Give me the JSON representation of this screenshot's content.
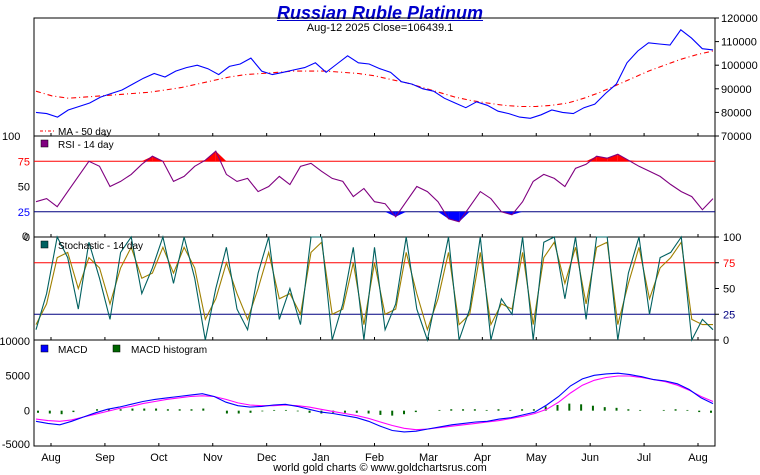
{
  "title": "Russian Ruble Platinum",
  "subtitle": "Aug-12  2025   Close=106439.1",
  "footer": "world gold charts © www.goldchartsrus.com",
  "colors": {
    "price": "#0000ff",
    "ma": "#ff0000",
    "rsi": "#800080",
    "rsi_over": "#ff0000",
    "rsi_under": "#0000ff",
    "stoch_k": "#006060",
    "stoch_d": "#a08000",
    "ref_high": "#ff0000",
    "ref_low": "#000080",
    "macd": "#0000ff",
    "signal": "#ff00ff",
    "histogram": "#006600"
  },
  "chart_data": [
    {
      "type": "line",
      "panel": "price",
      "x_tick_labels": [
        "Aug",
        "Sep",
        "Oct",
        "Nov",
        "Dec",
        "Jan",
        "Feb",
        "Mar",
        "Apr",
        "May",
        "Jun",
        "Jul",
        "Aug"
      ],
      "ylim": [
        70000,
        120000
      ],
      "y_ticks": [
        70000,
        80000,
        90000,
        100000,
        110000,
        120000
      ],
      "legend": [
        {
          "name": "MA - 50 day",
          "color": "#ff0000",
          "style": "dashdot"
        }
      ],
      "series": [
        {
          "name": "price",
          "color": "#0000ff",
          "values": [
            80000,
            79500,
            78000,
            81000,
            82500,
            84000,
            86500,
            88000,
            89500,
            92000,
            94500,
            96500,
            95000,
            97500,
            99000,
            100000,
            98500,
            96000,
            99500,
            100500,
            103000,
            97500,
            96000,
            97000,
            98000,
            99000,
            101000,
            97000,
            100500,
            104000,
            101000,
            100500,
            98500,
            97000,
            93000,
            92000,
            90000,
            89000,
            86000,
            84000,
            82000,
            84500,
            83000,
            80500,
            79500,
            78000,
            77500,
            79000,
            81000,
            80000,
            79500,
            82000,
            83500,
            88000,
            92000,
            101000,
            106000,
            109500,
            109000,
            108500,
            115000,
            111500,
            107000,
            106500
          ]
        },
        {
          "name": "MA - 50 day",
          "color": "#ff0000",
          "values": [
            89000,
            87000,
            86000,
            86500,
            87000,
            87500,
            88000,
            88500,
            89500,
            90500,
            92000,
            93500,
            95000,
            96000,
            96500,
            97000,
            97500,
            97500,
            97500,
            97000,
            96500,
            95500,
            94000,
            92500,
            90500,
            88500,
            86500,
            85000,
            84000,
            83000,
            82500,
            82500,
            83000,
            84000,
            86000,
            88500,
            91500,
            94500,
            97500,
            100000,
            102500,
            104500,
            106000
          ]
        }
      ]
    },
    {
      "type": "line",
      "panel": "rsi",
      "ylim": [
        0,
        100
      ],
      "y_ticks": [
        0,
        25,
        50,
        75,
        100
      ],
      "reference_lines": [
        75,
        25
      ],
      "legend": [
        {
          "name": "RSI - 14 day",
          "color": "#800080"
        }
      ],
      "series": [
        {
          "name": "RSI - 14 day",
          "color": "#800080",
          "values": [
            35,
            38,
            30,
            45,
            60,
            75,
            70,
            50,
            55,
            62,
            72,
            80,
            75,
            55,
            60,
            70,
            76,
            85,
            62,
            55,
            58,
            45,
            50,
            60,
            52,
            70,
            73,
            65,
            58,
            55,
            40,
            48,
            35,
            33,
            20,
            35,
            50,
            45,
            35,
            18,
            15,
            30,
            45,
            38,
            25,
            22,
            35,
            55,
            62,
            58,
            50,
            68,
            72,
            80,
            78,
            82,
            76,
            70,
            65,
            60,
            52,
            45,
            40,
            27,
            38
          ]
        }
      ]
    },
    {
      "type": "line",
      "panel": "stochastic",
      "ylim": [
        0,
        100
      ],
      "y_ticks": [
        0,
        25,
        50,
        75,
        100
      ],
      "reference_lines": [
        75,
        25
      ],
      "legend": [
        {
          "name": "Stochastic - 14 day",
          "color": "#006060"
        }
      ],
      "series": [
        {
          "name": "%K",
          "color": "#006060",
          "values": [
            10,
            45,
            100,
            80,
            30,
            95,
            60,
            20,
            85,
            100,
            45,
            70,
            100,
            55,
            100,
            60,
            0,
            50,
            90,
            30,
            10,
            65,
            100,
            20,
            50,
            15,
            100,
            100,
            0,
            35,
            90,
            0,
            90,
            10,
            35,
            100,
            30,
            0,
            50,
            100,
            0,
            30,
            100,
            0,
            40,
            25,
            100,
            0,
            95,
            100,
            40,
            100,
            20,
            100,
            100,
            0,
            65,
            100,
            25,
            80,
            85,
            100,
            0,
            20,
            10
          ]
        },
        {
          "name": "%D",
          "color": "#a08000",
          "values": [
            15,
            35,
            80,
            85,
            50,
            80,
            70,
            35,
            70,
            90,
            60,
            65,
            90,
            65,
            90,
            70,
            20,
            40,
            75,
            45,
            20,
            50,
            85,
            40,
            45,
            25,
            85,
            95,
            25,
            30,
            75,
            15,
            75,
            25,
            30,
            85,
            45,
            10,
            40,
            85,
            15,
            25,
            85,
            15,
            35,
            30,
            85,
            15,
            80,
            95,
            55,
            90,
            35,
            90,
            95,
            15,
            55,
            90,
            40,
            70,
            80,
            95,
            20,
            15,
            15
          ]
        }
      ]
    },
    {
      "type": "line",
      "panel": "macd",
      "ylim": [
        -5000,
        10000
      ],
      "y_ticks": [
        -5000,
        0,
        5000,
        10000
      ],
      "legend": [
        {
          "name": "MACD",
          "color": "#0000ff"
        },
        {
          "name": "MACD histogram",
          "color": "#006600"
        }
      ],
      "series": [
        {
          "name": "MACD",
          "color": "#0000ff",
          "values": [
            -1500,
            -1800,
            -2000,
            -1500,
            -900,
            -300,
            200,
            500,
            900,
            1300,
            1600,
            1800,
            2000,
            2200,
            2400,
            2000,
            1200,
            700,
            500,
            600,
            800,
            900,
            600,
            200,
            -200,
            -400,
            -700,
            -1000,
            -1500,
            -2200,
            -2800,
            -3000,
            -2900,
            -2600,
            -2300,
            -2000,
            -1800,
            -1600,
            -1500,
            -1200,
            -1000,
            -600,
            -200,
            800,
            2000,
            3500,
            4500,
            5000,
            5200,
            5300,
            5100,
            4800,
            4400,
            4200,
            3800,
            3000,
            1800,
            1000
          ]
        },
        {
          "name": "signal",
          "color": "#ff00ff",
          "values": [
            -1200,
            -1400,
            -1500,
            -1300,
            -900,
            -500,
            -100,
            300,
            600,
            1000,
            1300,
            1600,
            1800,
            2000,
            2100,
            2000,
            1600,
            1100,
            800,
            700,
            700,
            800,
            700,
            500,
            200,
            -100,
            -400,
            -700,
            -1100,
            -1600,
            -2100,
            -2500,
            -2700,
            -2600,
            -2400,
            -2200,
            -2000,
            -1800,
            -1600,
            -1400,
            -1100,
            -800,
            -400,
            200,
            1200,
            2500,
            3600,
            4300,
            4700,
            4900,
            4900,
            4700,
            4400,
            4100,
            3600,
            2900,
            2000,
            1300
          ]
        },
        {
          "name": "MACD histogram",
          "color": "#006600",
          "values": [
            -300,
            -400,
            -500,
            -200,
            0,
            200,
            300,
            200,
            300,
            300,
            300,
            200,
            200,
            200,
            300,
            0,
            -400,
            -400,
            -300,
            -100,
            100,
            100,
            -100,
            -300,
            -400,
            -300,
            -300,
            -300,
            -400,
            -600,
            -700,
            -500,
            -200,
            0,
            100,
            200,
            200,
            200,
            100,
            200,
            100,
            200,
            200,
            600,
            800,
            1000,
            900,
            700,
            500,
            400,
            200,
            100,
            0,
            100,
            200,
            100,
            -200,
            -300
          ]
        }
      ]
    }
  ]
}
